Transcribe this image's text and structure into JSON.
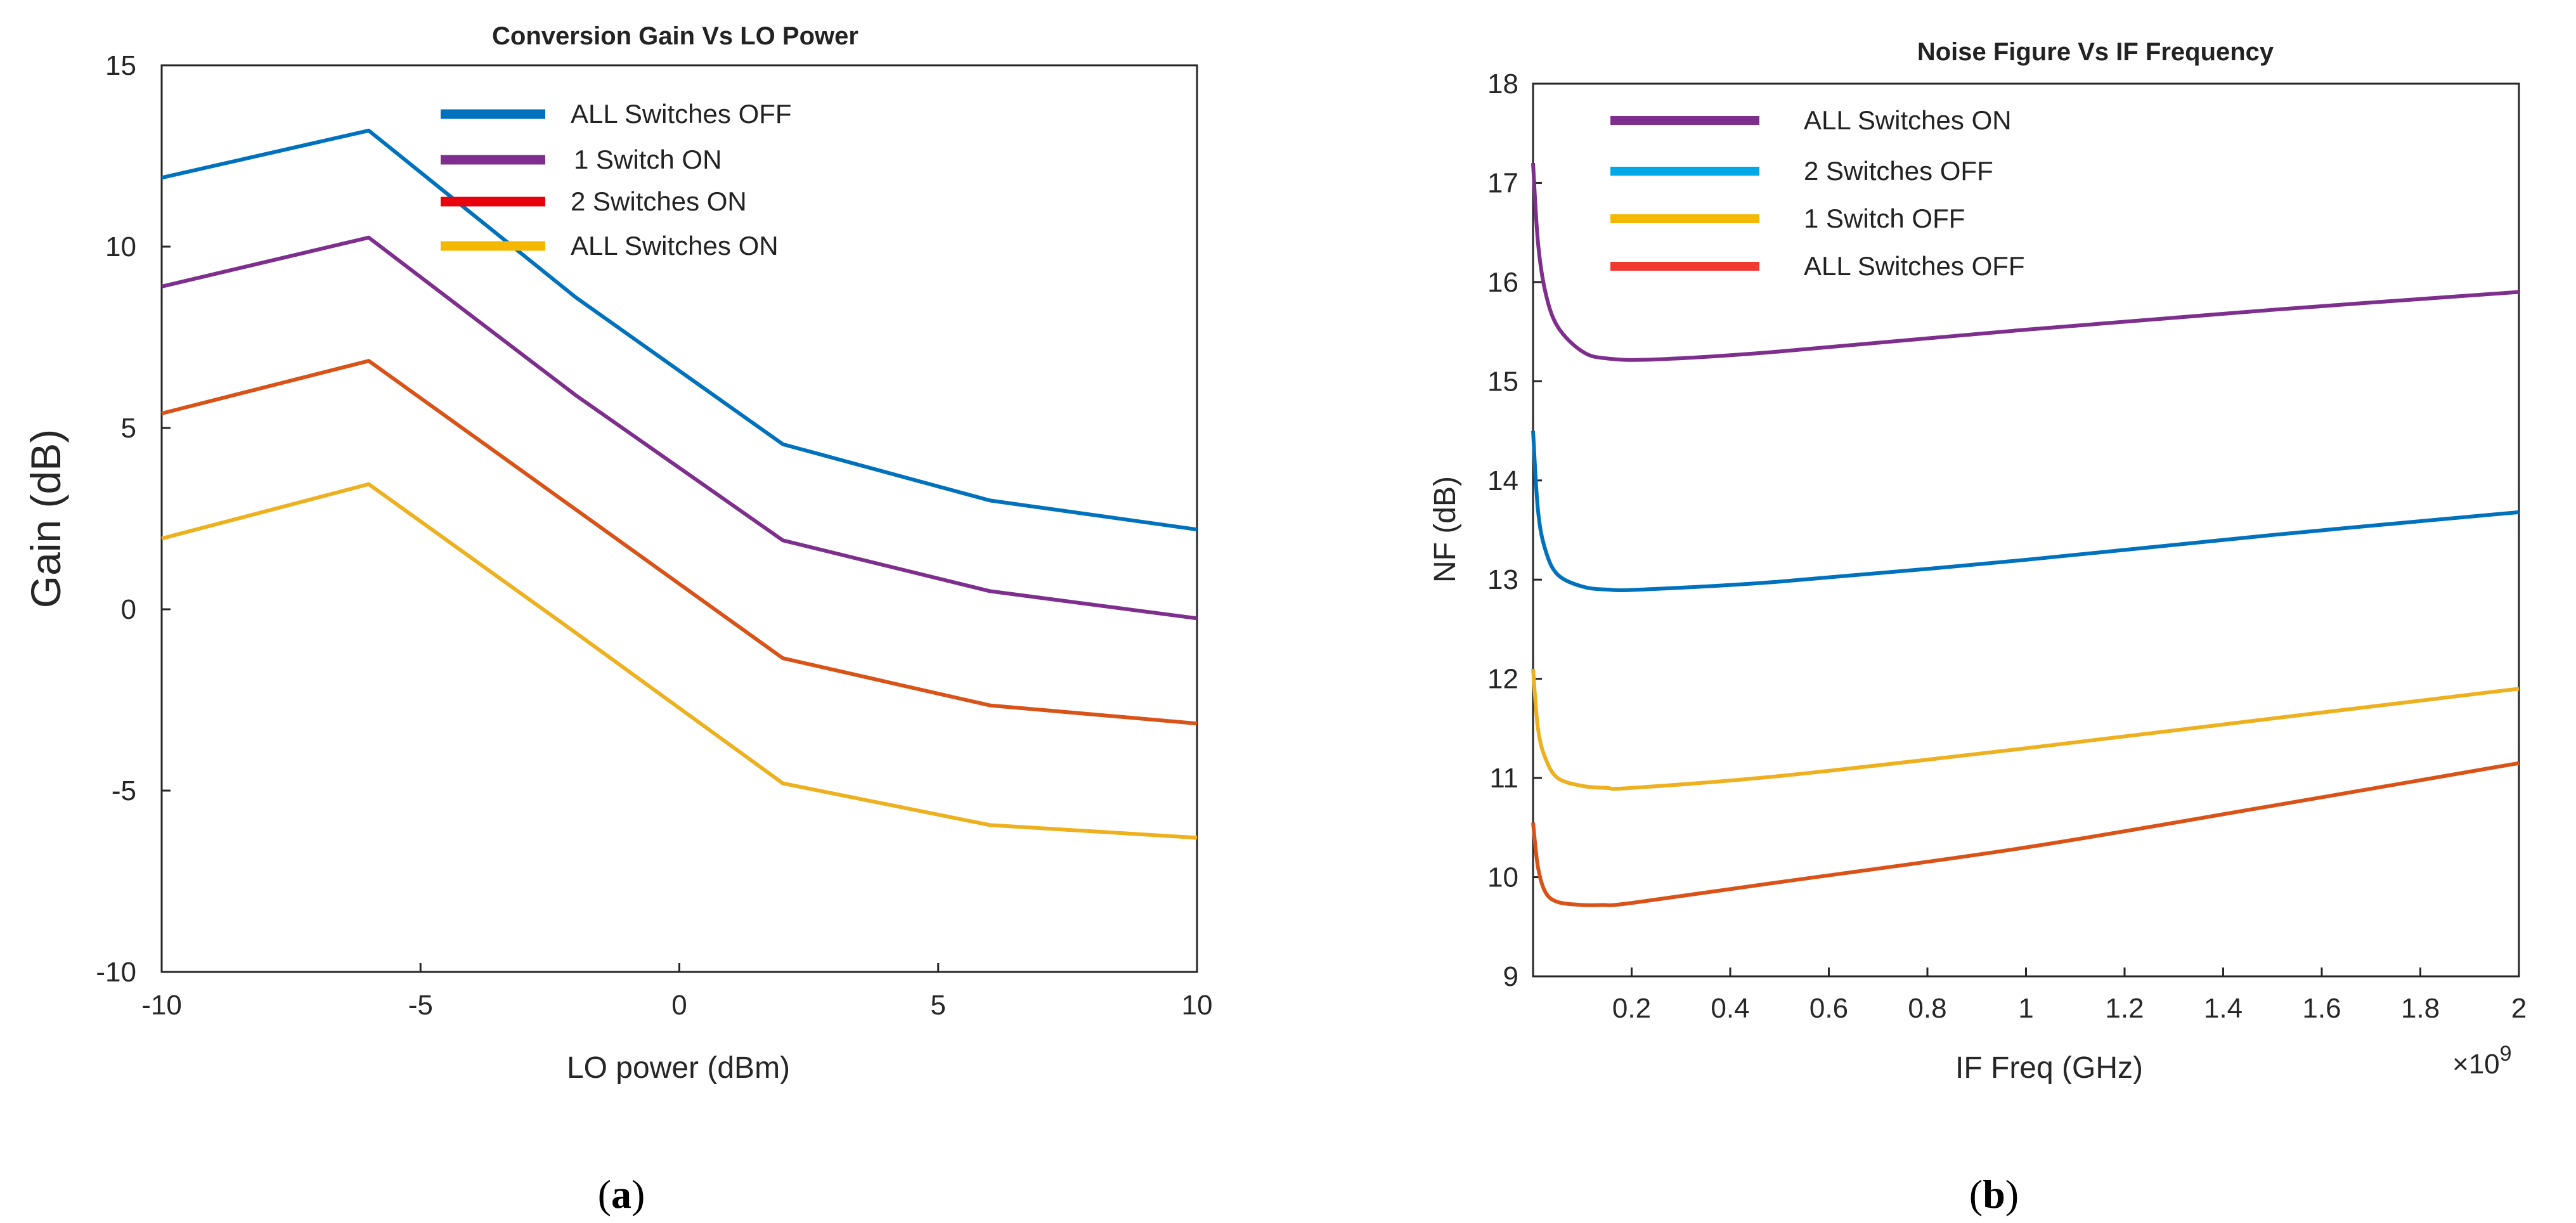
{
  "chart_data": [
    {
      "type": "line",
      "title": "Conversion Gain Vs LO Power",
      "xlabel": "LO power (dBm)",
      "ylabel": "Gain (dB)",
      "xlim": [
        -10,
        10
      ],
      "ylim": [
        -10,
        15
      ],
      "xticks": [
        -10,
        -5,
        0,
        5,
        10
      ],
      "yticks": [
        -10,
        -5,
        0,
        5,
        10,
        15
      ],
      "caption_text": "a",
      "series": [
        {
          "name": "ALL Switches OFF",
          "legend_color": "#0072BD",
          "line_color": "#0072BD",
          "x": [
            -10,
            -6,
            -2,
            2,
            6,
            10
          ],
          "y": [
            11.9,
            13.2,
            8.6,
            4.55,
            3.0,
            2.2
          ]
        },
        {
          "name": "1 Switch ON",
          "legend_color": "#7E2F8E",
          "line_color": "#7E2F8E",
          "x": [
            -10,
            -6,
            -2,
            2,
            6,
            10
          ],
          "y": [
            8.9,
            10.25,
            5.9,
            1.9,
            0.5,
            -0.25
          ]
        },
        {
          "name": "2 Switches ON",
          "legend_color": "#E8000B",
          "line_color": "#D95319",
          "x": [
            -10,
            -6,
            -2,
            2,
            6,
            10
          ],
          "y": [
            5.4,
            6.85,
            2.75,
            -1.35,
            -2.65,
            -3.15
          ]
        },
        {
          "name": "ALL Switches ON",
          "legend_color": "#F5B800",
          "line_color": "#EDB120",
          "x": [
            -10,
            -6,
            -2,
            2,
            6,
            10
          ],
          "y": [
            1.95,
            3.45,
            -0.65,
            -4.8,
            -5.95,
            -6.3
          ]
        }
      ]
    },
    {
      "type": "line",
      "title": "Noise Figure Vs IF Frequency",
      "xlabel": "IF Freq (GHz)",
      "ylabel": "NF (dB)",
      "xlim": [
        0.0,
        2.0
      ],
      "ylim": [
        9,
        18
      ],
      "xticks": [
        "0.2",
        "0.4",
        "0.6",
        "0.8",
        "1",
        "1.2",
        "1.4",
        "1.6",
        "1.8",
        "2"
      ],
      "yticks": [
        9,
        10,
        11,
        12,
        13,
        14,
        15,
        16,
        17,
        18
      ],
      "exponent_label": "×10",
      "exponent_power": "9",
      "caption_text": "b",
      "series": [
        {
          "name": "ALL Switches ON",
          "legend_color": "#7E2F8E",
          "line_color": "#7E2F8E",
          "x": [
            0.0,
            0.01,
            0.025,
            0.05,
            0.1,
            0.15,
            0.25,
            0.5,
            1.0,
            1.5,
            2.0
          ],
          "y": [
            17.2,
            16.4,
            15.9,
            15.55,
            15.3,
            15.23,
            15.22,
            15.3,
            15.52,
            15.72,
            15.9
          ]
        },
        {
          "name": "2 Switches OFF",
          "legend_color": "#00A8E8",
          "line_color": "#0072BD",
          "x": [
            0.0,
            0.01,
            0.025,
            0.05,
            0.1,
            0.15,
            0.22,
            0.5,
            1.0,
            1.5,
            2.0
          ],
          "y": [
            14.5,
            13.7,
            13.3,
            13.05,
            12.93,
            12.9,
            12.9,
            12.98,
            13.2,
            13.45,
            13.68
          ]
        },
        {
          "name": "1 Switch OFF",
          "legend_color": "#F5B800",
          "line_color": "#EDB120",
          "x": [
            0.0,
            0.01,
            0.025,
            0.05,
            0.1,
            0.15,
            0.2,
            0.5,
            1.0,
            1.5,
            2.0
          ],
          "y": [
            12.1,
            11.5,
            11.2,
            11.0,
            10.92,
            10.9,
            10.9,
            11.02,
            11.3,
            11.6,
            11.9
          ]
        },
        {
          "name": "ALL Switches OFF",
          "legend_color": "#F03A30",
          "line_color": "#D95319",
          "x": [
            0.0,
            0.01,
            0.025,
            0.05,
            0.1,
            0.14,
            0.2,
            0.5,
            1.0,
            1.5,
            2.0
          ],
          "y": [
            10.55,
            10.1,
            9.85,
            9.75,
            9.72,
            9.72,
            9.74,
            9.95,
            10.3,
            10.72,
            11.15
          ]
        }
      ]
    }
  ]
}
